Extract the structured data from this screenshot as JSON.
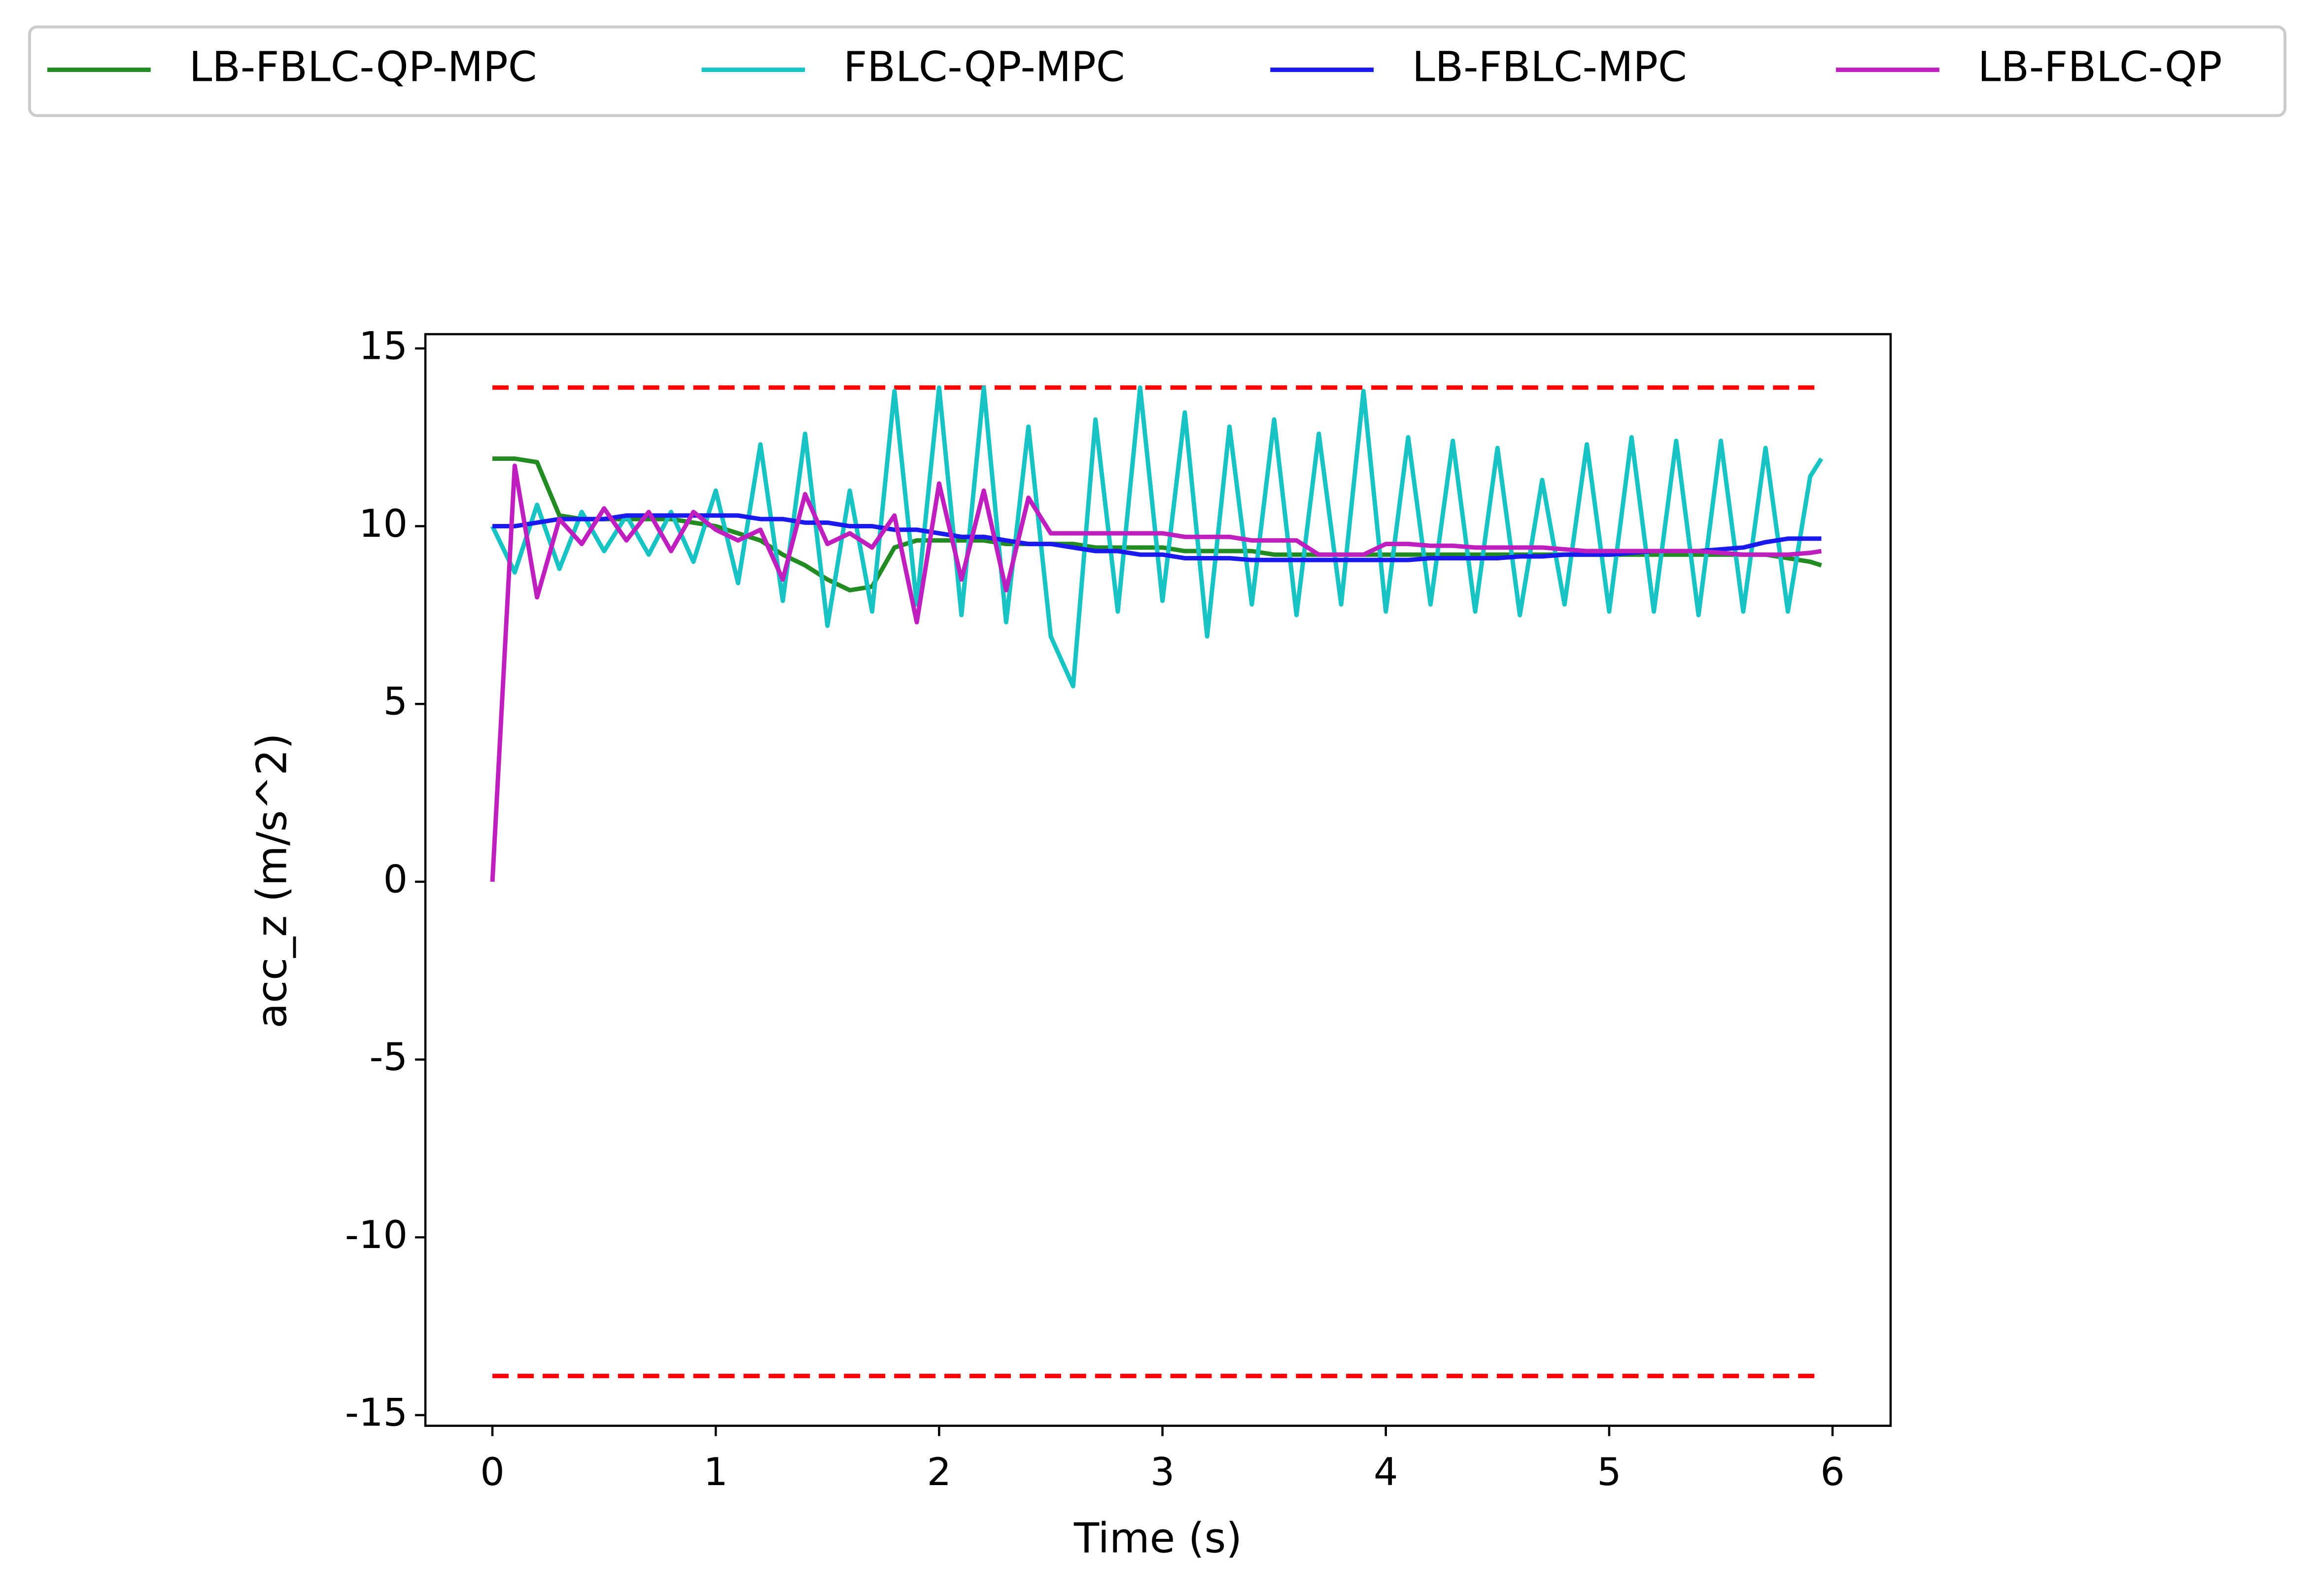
{
  "chart_data": {
    "type": "line",
    "xlabel": "Time (s)",
    "ylabel": "acc_z (m/s^2)",
    "xlim": [
      -0.3,
      6.26
    ],
    "ylim": [
      -15.3,
      15.4
    ],
    "xticks": [
      0,
      1,
      2,
      3,
      4,
      5,
      6
    ],
    "yticks": [
      -15,
      -10,
      -5,
      0,
      5,
      10,
      15
    ],
    "legend": "upper center outside",
    "x": [
      0,
      0.1,
      0.2,
      0.3,
      0.4,
      0.5,
      0.6,
      0.7,
      0.8,
      0.9,
      1.0,
      1.1,
      1.2,
      1.3,
      1.4,
      1.5,
      1.6,
      1.7,
      1.8,
      1.9,
      2.0,
      2.1,
      2.2,
      2.3,
      2.4,
      2.5,
      2.6,
      2.7,
      2.8,
      2.9,
      3.0,
      3.1,
      3.2,
      3.3,
      3.4,
      3.5,
      3.6,
      3.7,
      3.8,
      3.9,
      4.0,
      4.1,
      4.2,
      4.3,
      4.4,
      4.5,
      4.6,
      4.7,
      4.8,
      4.9,
      5.0,
      5.1,
      5.2,
      5.3,
      5.4,
      5.5,
      5.6,
      5.7,
      5.8,
      5.9,
      5.95
    ],
    "limit_lines": {
      "color": "#ff0000",
      "x": [
        0,
        5.95
      ],
      "upper": [
        13.9,
        13.9
      ],
      "lower": [
        -13.9,
        -13.9
      ]
    },
    "series": [
      {
        "name": "LB-FBLC-QP-MPC",
        "color": "#228b22",
        "values": [
          11.9,
          11.9,
          11.8,
          10.3,
          10.2,
          10.2,
          10.2,
          10.2,
          10.2,
          10.1,
          10.0,
          9.8,
          9.6,
          9.2,
          8.9,
          8.5,
          8.2,
          8.3,
          9.4,
          9.6,
          9.6,
          9.6,
          9.6,
          9.5,
          9.5,
          9.5,
          9.5,
          9.4,
          9.4,
          9.4,
          9.4,
          9.3,
          9.3,
          9.3,
          9.3,
          9.2,
          9.2,
          9.2,
          9.2,
          9.2,
          9.2,
          9.2,
          9.2,
          9.2,
          9.2,
          9.2,
          9.2,
          9.2,
          9.2,
          9.2,
          9.2,
          9.2,
          9.2,
          9.2,
          9.2,
          9.2,
          9.2,
          9.2,
          9.1,
          9.0,
          8.9
        ]
      },
      {
        "name": "FBLC-QP-MPC",
        "color": "#17c3c3",
        "values": [
          10.0,
          8.7,
          10.6,
          8.8,
          10.4,
          9.3,
          10.3,
          9.2,
          10.4,
          9.0,
          11.0,
          8.4,
          12.3,
          7.9,
          12.6,
          7.2,
          11.0,
          7.6,
          13.8,
          7.8,
          13.9,
          7.5,
          13.9,
          7.3,
          12.8,
          6.9,
          5.5,
          13.0,
          7.6,
          13.9,
          7.9,
          13.2,
          6.9,
          12.8,
          7.8,
          13.0,
          7.5,
          12.6,
          7.8,
          13.8,
          7.6,
          12.5,
          7.8,
          12.4,
          7.6,
          12.2,
          7.5,
          11.3,
          7.8,
          12.3,
          7.6,
          12.5,
          7.6,
          12.4,
          7.5,
          12.4,
          7.6,
          12.2,
          7.6,
          11.4,
          11.9
        ]
      },
      {
        "name": "LB-FBLC-MPC",
        "color": "#1a1aee",
        "values": [
          10.0,
          10.0,
          10.1,
          10.2,
          10.2,
          10.2,
          10.3,
          10.3,
          10.3,
          10.3,
          10.3,
          10.3,
          10.2,
          10.2,
          10.1,
          10.1,
          10.0,
          10.0,
          9.9,
          9.9,
          9.8,
          9.7,
          9.7,
          9.6,
          9.5,
          9.5,
          9.4,
          9.3,
          9.3,
          9.2,
          9.2,
          9.1,
          9.1,
          9.1,
          9.05,
          9.05,
          9.05,
          9.05,
          9.05,
          9.05,
          9.05,
          9.05,
          9.1,
          9.1,
          9.1,
          9.1,
          9.15,
          9.15,
          9.2,
          9.2,
          9.2,
          9.25,
          9.3,
          9.3,
          9.3,
          9.35,
          9.4,
          9.55,
          9.65,
          9.65,
          9.65
        ]
      },
      {
        "name": "LB-FBLC-QP",
        "color": "#bf1fbf",
        "values": [
          0,
          11.7,
          8.0,
          10.2,
          9.5,
          10.5,
          9.6,
          10.4,
          9.3,
          10.4,
          9.9,
          9.6,
          9.9,
          8.5,
          10.9,
          9.5,
          9.8,
          9.4,
          10.3,
          7.3,
          11.2,
          8.5,
          11.0,
          8.2,
          10.8,
          9.8,
          9.8,
          9.8,
          9.8,
          9.8,
          9.8,
          9.7,
          9.7,
          9.7,
          9.6,
          9.6,
          9.6,
          9.2,
          9.2,
          9.2,
          9.5,
          9.5,
          9.45,
          9.45,
          9.4,
          9.4,
          9.4,
          9.4,
          9.35,
          9.3,
          9.3,
          9.3,
          9.3,
          9.3,
          9.3,
          9.25,
          9.2,
          9.2,
          9.2,
          9.25,
          9.3
        ]
      }
    ]
  }
}
